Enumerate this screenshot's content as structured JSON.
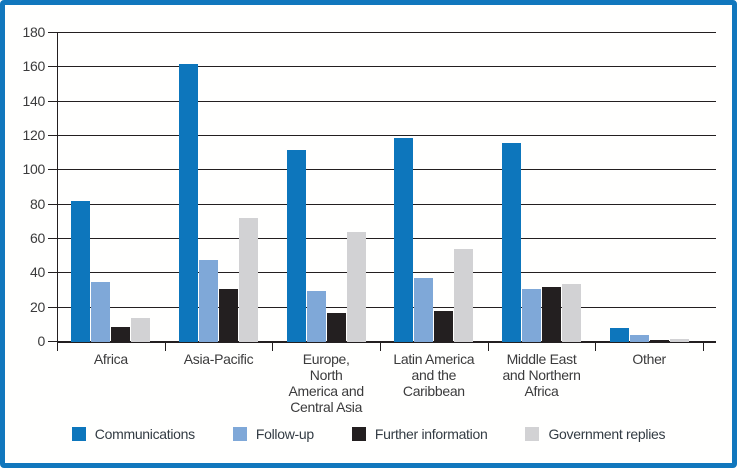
{
  "figure": {
    "frame_color": "#1177bd",
    "background_color": "#fffffe",
    "text_color": "#3b3b3c"
  },
  "chart_data": {
    "type": "bar",
    "title": "",
    "xlabel": "",
    "ylabel": "",
    "ylim": [
      0,
      180
    ],
    "ytick_step": 20,
    "yticks": [
      0,
      20,
      40,
      60,
      80,
      100,
      120,
      140,
      160,
      180
    ],
    "grid": "horizontal",
    "legend_position": "bottom",
    "categories": [
      "Africa",
      "Asia-Pacific",
      "Europe,\nNorth\nAmerica and\nCentral Asia",
      "Latin America\nand the\nCaribbean",
      "Middle East\nand Northern\nAfrica",
      "Other"
    ],
    "series": [
      {
        "name": "Communications",
        "color": "#0d76bc",
        "values": [
          82,
          162,
          112,
          119,
          116,
          8
        ]
      },
      {
        "name": "Follow-up",
        "color": "#7fa8d8",
        "values": [
          35,
          48,
          30,
          37,
          31,
          4
        ]
      },
      {
        "name": "Further information",
        "color": "#231f20",
        "values": [
          9,
          31,
          17,
          18,
          32,
          1
        ]
      },
      {
        "name": "Government replies",
        "color": "#d2d2d4",
        "values": [
          14,
          72,
          64,
          54,
          34,
          2
        ]
      }
    ]
  }
}
